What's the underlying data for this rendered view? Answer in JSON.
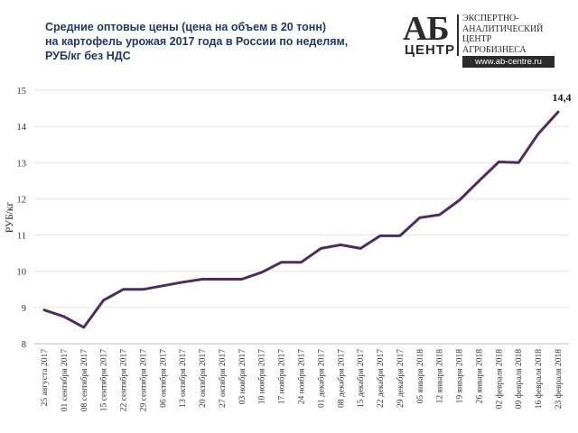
{
  "title": {
    "line1": "Средние оптовые цены (цена на объем в 20 тонн)",
    "line2": "на картофель урожая 2017 года в России по неделям,",
    "line3": "РУБ/кг без НДС"
  },
  "logo": {
    "mark_top": "АБ",
    "mark_bottom": "ЦЕНТР",
    "line1": "ЭКСПЕРТНО-",
    "line2": "АНАЛИТИЧЕСКИЙ",
    "line3": "ЦЕНТР",
    "line4": "АГРОБИЗНЕСА",
    "url": "www.ab-centre.ru"
  },
  "chart_data": {
    "type": "line",
    "title": "Средние оптовые цены (цена на объем в 20 тонн) на картофель урожая 2017 года в России по неделям, РУБ/кг без НДС",
    "xlabel": "",
    "ylabel": "РУБ/кг",
    "ylim": [
      8,
      15
    ],
    "yticks": [
      8,
      9,
      10,
      11,
      12,
      13,
      14,
      15
    ],
    "grid": true,
    "legend": "none",
    "line_color": "#4b2e5e",
    "categories": [
      "25 августа 2017",
      "01 сентября 2017",
      "08 сентября 2017",
      "15 сентября 2017",
      "22 сентября 2017",
      "29 сентября 2017",
      "06 октября 2017",
      "13 октября 2017",
      "20 октября 2017",
      "27 октября 2017",
      "03 ноября 2017",
      "10 ноября 2017",
      "17 ноября 2017",
      "24 ноября 2017",
      "01 декабря 2017",
      "08 декабря 2017",
      "15 декабря 2017",
      "22 декабря 2017",
      "29 декабря 2017",
      "05 января 2018",
      "12 января 2018",
      "19 января 2018",
      "26 января 2018",
      "02 февраля 2018",
      "09 февраля 2018",
      "16 февраля 2018",
      "23 февраля 2018"
    ],
    "series": [
      {
        "name": "",
        "values": [
          8.93,
          8.75,
          8.45,
          9.2,
          9.5,
          9.5,
          9.6,
          9.7,
          9.78,
          9.78,
          9.78,
          9.97,
          10.25,
          10.25,
          10.63,
          10.73,
          10.63,
          10.98,
          10.98,
          11.48,
          11.56,
          11.96,
          12.5,
          13.02,
          13.0,
          13.8,
          14.4
        ]
      }
    ],
    "data_labels": [
      {
        "index": 26,
        "text": "14,4"
      }
    ]
  }
}
